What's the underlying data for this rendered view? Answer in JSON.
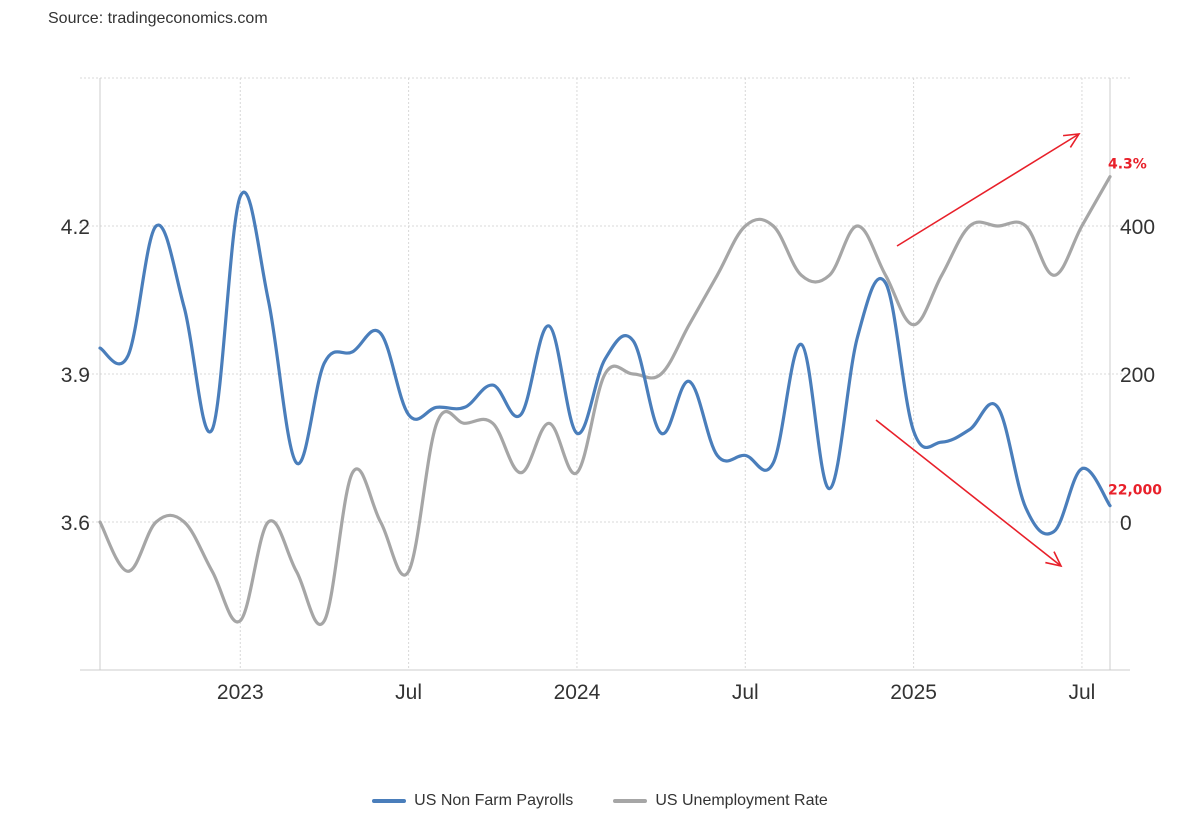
{
  "source": "Source: tradingeconomics.com",
  "chart_data": {
    "type": "line",
    "title": "",
    "x_ticks": [
      {
        "label": "2023",
        "date": "2023-01"
      },
      {
        "label": "Jul",
        "date": "2023-07"
      },
      {
        "label": "2024",
        "date": "2024-01"
      },
      {
        "label": "Jul",
        "date": "2024-07"
      },
      {
        "label": "2025",
        "date": "2025-01"
      },
      {
        "label": "Jul",
        "date": "2025-07"
      }
    ],
    "xlim": [
      "2022-08",
      "2025-08"
    ],
    "y_left": {
      "ticks": [
        "3.6",
        "3.9",
        "4.2"
      ],
      "ylim": [
        3.3,
        4.5
      ],
      "series": "US Unemployment Rate"
    },
    "y_right": {
      "ticks": [
        "0",
        "200",
        "400"
      ],
      "ylim": [
        -200,
        600
      ],
      "series": "US Non Farm Payrolls"
    },
    "grid": true,
    "legend_position": "bottom",
    "series": [
      {
        "name": "US Non Farm Payrolls",
        "axis": "right",
        "color": "#4a7ebb",
        "dates": [
          "2022-08",
          "2022-09",
          "2022-10",
          "2022-11",
          "2022-12",
          "2023-01",
          "2023-02",
          "2023-03",
          "2023-04",
          "2023-05",
          "2023-06",
          "2023-07",
          "2023-08",
          "2023-09",
          "2023-10",
          "2023-11",
          "2023-12",
          "2024-01",
          "2024-02",
          "2024-03",
          "2024-04",
          "2024-05",
          "2024-06",
          "2024-07",
          "2024-08",
          "2024-09",
          "2024-10",
          "2024-11",
          "2024-12",
          "2025-01",
          "2025-02",
          "2025-03",
          "2025-04",
          "2025-05",
          "2025-06",
          "2025-07",
          "2025-08"
        ],
        "values": [
          235,
          225,
          400,
          290,
          125,
          440,
          300,
          80,
          215,
          230,
          255,
          145,
          155,
          155,
          185,
          145,
          265,
          120,
          220,
          245,
          120,
          190,
          90,
          90,
          80,
          240,
          45,
          250,
          323,
          123,
          108,
          125,
          155,
          19,
          -13,
          72,
          22
        ]
      },
      {
        "name": "US Unemployment Rate",
        "axis": "left",
        "color": "#a6a6a6",
        "dates": [
          "2022-08",
          "2022-09",
          "2022-10",
          "2022-11",
          "2022-12",
          "2023-01",
          "2023-02",
          "2023-03",
          "2023-04",
          "2023-05",
          "2023-06",
          "2023-07",
          "2023-08",
          "2023-09",
          "2023-10",
          "2023-11",
          "2023-12",
          "2024-01",
          "2024-02",
          "2024-03",
          "2024-04",
          "2024-05",
          "2024-06",
          "2024-07",
          "2024-08",
          "2024-09",
          "2024-10",
          "2024-11",
          "2024-12",
          "2025-01",
          "2025-02",
          "2025-03",
          "2025-04",
          "2025-05",
          "2025-06",
          "2025-07",
          "2025-08"
        ],
        "values": [
          3.6,
          3.5,
          3.6,
          3.6,
          3.5,
          3.4,
          3.6,
          3.5,
          3.4,
          3.7,
          3.6,
          3.5,
          3.8,
          3.8,
          3.8,
          3.7,
          3.8,
          3.7,
          3.9,
          3.9,
          3.9,
          4.0,
          4.1,
          4.2,
          4.2,
          4.1,
          4.1,
          4.2,
          4.1,
          4.0,
          4.1,
          4.2,
          4.2,
          4.2,
          4.1,
          4.2,
          4.3
        ]
      }
    ],
    "annotations": [
      {
        "text": "4.3%",
        "series": "US Unemployment Rate",
        "trend": "up"
      },
      {
        "text": "22,000",
        "series": "US Non Farm Payrolls",
        "trend": "down"
      }
    ]
  }
}
